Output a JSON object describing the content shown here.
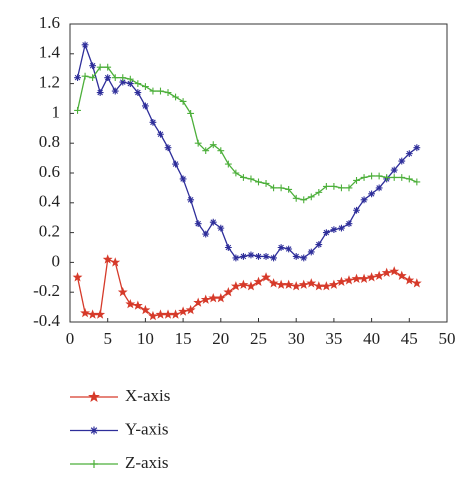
{
  "chart_data": {
    "type": "line",
    "x": [
      1,
      2,
      3,
      4,
      5,
      6,
      7,
      8,
      9,
      10,
      11,
      12,
      13,
      14,
      15,
      16,
      17,
      18,
      19,
      20,
      21,
      22,
      23,
      24,
      25,
      26,
      27,
      28,
      29,
      30,
      31,
      32,
      33,
      34,
      35,
      36,
      37,
      38,
      39,
      40,
      41,
      42,
      43,
      44,
      45,
      46
    ],
    "series": [
      {
        "name": "X-axis",
        "color": "#d63a2a",
        "marker": "star",
        "values": [
          -0.1,
          -0.34,
          -0.35,
          -0.35,
          0.02,
          0.0,
          -0.2,
          -0.28,
          -0.29,
          -0.32,
          -0.36,
          -0.35,
          -0.35,
          -0.35,
          -0.33,
          -0.32,
          -0.27,
          -0.25,
          -0.24,
          -0.24,
          -0.2,
          -0.16,
          -0.15,
          -0.16,
          -0.13,
          -0.1,
          -0.14,
          -0.15,
          -0.15,
          -0.16,
          -0.15,
          -0.14,
          -0.16,
          -0.16,
          -0.15,
          -0.13,
          -0.12,
          -0.11,
          -0.11,
          -0.1,
          -0.09,
          -0.07,
          -0.06,
          -0.09,
          -0.12,
          -0.14
        ]
      },
      {
        "name": "Y-axis",
        "color": "#2e2e9a",
        "marker": "asterisk",
        "values": [
          1.24,
          1.46,
          1.32,
          1.14,
          1.24,
          1.15,
          1.21,
          1.2,
          1.14,
          1.05,
          0.94,
          0.86,
          0.77,
          0.66,
          0.56,
          0.42,
          0.26,
          0.19,
          0.27,
          0.23,
          0.1,
          0.03,
          0.04,
          0.05,
          0.04,
          0.04,
          0.03,
          0.1,
          0.09,
          0.04,
          0.03,
          0.07,
          0.12,
          0.2,
          0.22,
          0.23,
          0.26,
          0.35,
          0.42,
          0.46,
          0.5,
          0.56,
          0.62,
          0.68,
          0.73,
          0.77
        ]
      },
      {
        "name": "Z-axis",
        "color": "#4caf3a",
        "marker": "plus",
        "values": [
          1.02,
          1.25,
          1.24,
          1.31,
          1.31,
          1.24,
          1.24,
          1.23,
          1.2,
          1.18,
          1.15,
          1.15,
          1.14,
          1.11,
          1.08,
          1.0,
          0.8,
          0.75,
          0.79,
          0.75,
          0.66,
          0.6,
          0.57,
          0.56,
          0.54,
          0.53,
          0.5,
          0.5,
          0.49,
          0.43,
          0.42,
          0.44,
          0.47,
          0.51,
          0.51,
          0.5,
          0.5,
          0.55,
          0.57,
          0.58,
          0.58,
          0.57,
          0.57,
          0.57,
          0.56,
          0.54
        ]
      }
    ],
    "xlim": [
      0,
      50
    ],
    "xticks": [
      0,
      5,
      10,
      15,
      20,
      25,
      30,
      35,
      40,
      45,
      50
    ],
    "ylim": [
      -0.4,
      1.6
    ],
    "yticks": [
      -0.4,
      -0.2,
      0,
      0.2,
      0.4,
      0.6,
      0.8,
      1,
      1.2,
      1.4,
      1.6
    ]
  }
}
